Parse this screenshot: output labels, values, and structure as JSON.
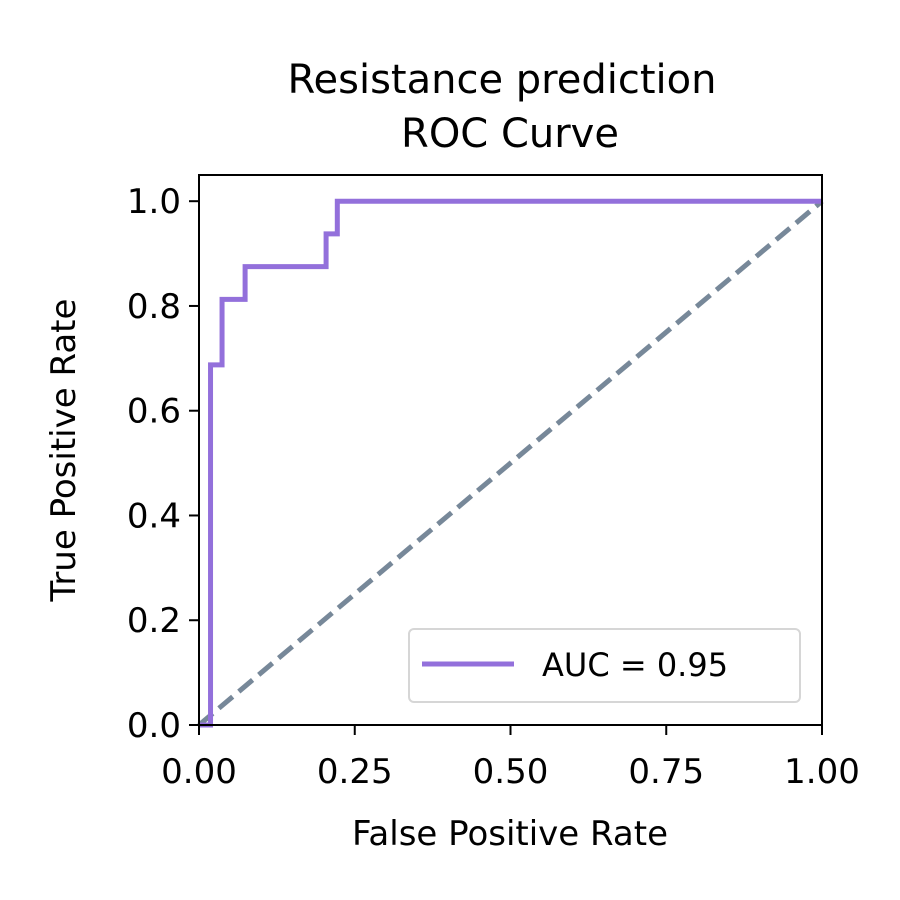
{
  "chart_data": {
    "type": "line",
    "title": [
      "Resistance prediction",
      "ROC Curve"
    ],
    "xlabel": "False Positive Rate",
    "ylabel": "True Positive Rate",
    "xlim": [
      0.0,
      1.0
    ],
    "ylim": [
      0.0,
      1.05
    ],
    "xticks": [
      0.0,
      0.25,
      0.5,
      0.75,
      1.0
    ],
    "xtick_labels": [
      "0.00",
      "0.25",
      "0.50",
      "0.75",
      "1.00"
    ],
    "yticks": [
      0.0,
      0.2,
      0.4,
      0.6,
      0.8,
      1.0
    ],
    "ytick_labels": [
      "0.0",
      "0.2",
      "0.4",
      "0.6",
      "0.8",
      "1.0"
    ],
    "grid": false,
    "legend_position": "lower-right",
    "series": [
      {
        "name": "AUC = 0.95",
        "color": "#9370DB",
        "style": "solid-step",
        "x": [
          0.0,
          0.0185,
          0.0185,
          0.037,
          0.037,
          0.074,
          0.074,
          0.204,
          0.204,
          0.222,
          0.222,
          1.0
        ],
        "y": [
          0.0,
          0.0,
          0.6875,
          0.6875,
          0.8125,
          0.8125,
          0.875,
          0.875,
          0.9375,
          0.9375,
          1.0,
          1.0
        ]
      },
      {
        "color": "#778899",
        "style": "dashed",
        "x": [
          0.0,
          1.0
        ],
        "y": [
          0.0,
          1.0
        ]
      }
    ]
  }
}
